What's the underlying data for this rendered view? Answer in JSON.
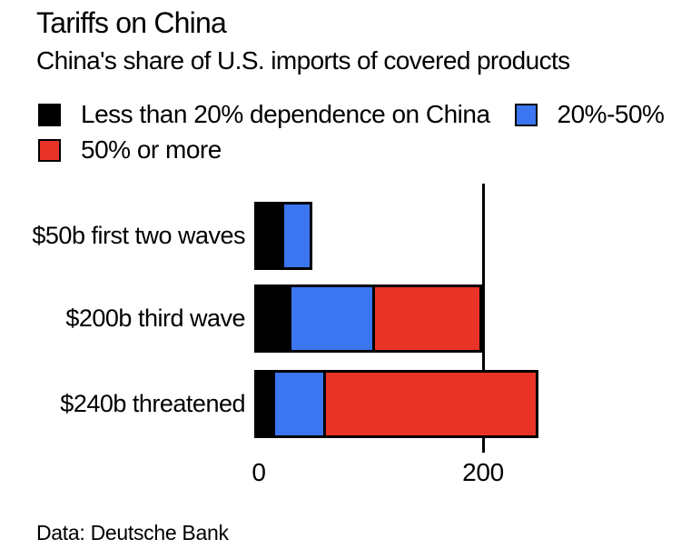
{
  "header": {
    "title": "Tariffs on China",
    "subtitle": "China's share of U.S. imports of covered products"
  },
  "footer": {
    "source": "Data: Deutsche Bank"
  },
  "colors": {
    "background": "#FFFFFF",
    "text": "#000000",
    "bar_outline": "#000000",
    "black_series": "#000000",
    "blue_series": "#3B76F0",
    "red_series": "#E93327"
  },
  "chart_data": {
    "type": "bar",
    "orientation": "horizontal",
    "stacked": true,
    "title": "Tariffs on China",
    "subtitle": "China's share of U.S. imports of covered products",
    "categories": [
      "$50b first two waves",
      "$200b third wave",
      "$240b threatened"
    ],
    "series": [
      {
        "name": "Less than 20% dependence on China",
        "color": "#000000",
        "values": [
          22,
          28,
          14
        ]
      },
      {
        "name": "20%-50%",
        "color": "#3B76F0",
        "values": [
          25,
          75,
          45
        ]
      },
      {
        "name": "50% or more",
        "color": "#E93327",
        "values": [
          0,
          95,
          190
        ]
      }
    ],
    "totals": [
      47,
      198,
      249
    ],
    "xlim": [
      0,
      305
    ],
    "xticks": [
      {
        "value": 0,
        "label": "0"
      },
      {
        "value": 200,
        "label": "200"
      }
    ],
    "gridlines": [
      200
    ],
    "legend_position": "top",
    "grid": "single vertical gridline at 200, drawn behind bars",
    "source": "Data: Deutsche Bank"
  }
}
